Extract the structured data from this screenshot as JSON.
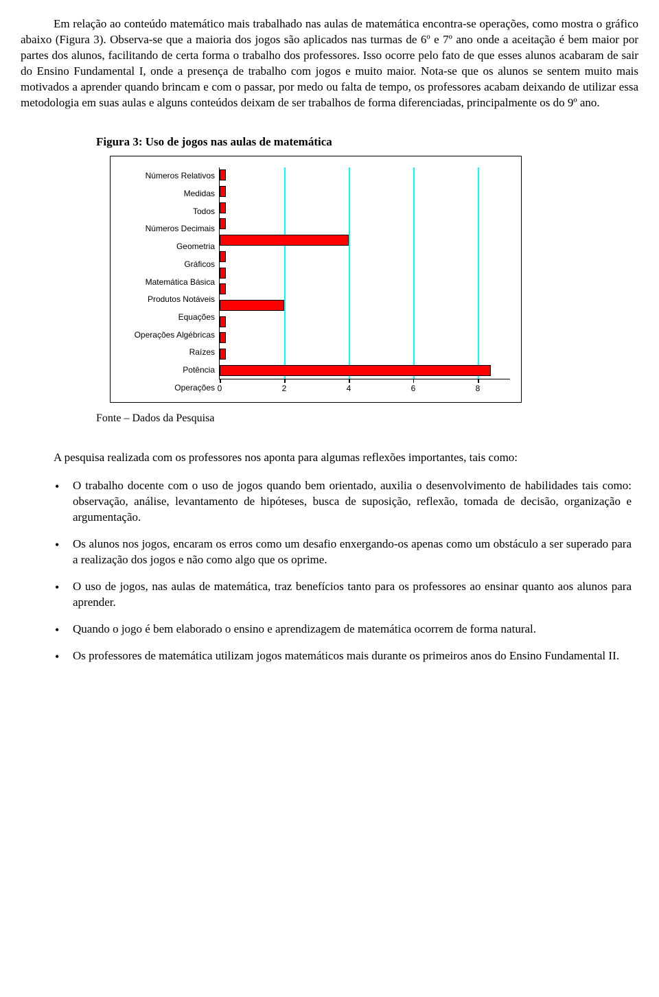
{
  "paragraph1": "Em relação ao conteúdo matemático mais trabalhado nas aulas de matemática encontra-se operações, como mostra o gráfico abaixo (Figura 3). Observa-se que a maioria dos jogos são aplicados nas turmas de 6º e 7º ano onde a aceitação é bem maior por partes dos alunos, facilitando de certa forma o trabalho dos professores. Isso ocorre pelo fato de que esses alunos acabaram de sair do Ensino Fundamental I, onde a presença de trabalho com jogos e muito maior. Nota-se que os alunos se sentem muito mais motivados a aprender quando brincam e com o passar, por medo ou falta de tempo, os professores acabam deixando de utilizar essa metodologia em suas aulas e alguns conteúdos deixam de ser trabalhos de forma diferenciadas, principalmente os do 9º ano.",
  "figure_caption": "Figura 3: Uso de jogos nas aulas de matemática",
  "chart": {
    "type": "bar-horizontal",
    "bar_color": "#ff0000",
    "bar_border": "#000000",
    "grid_color": "#00ffff",
    "axis_color": "#000000",
    "background": "#ffffff",
    "label_font": "Arial",
    "label_fontsize": 12,
    "x_max": 9,
    "x_ticks": [
      0,
      2,
      4,
      6,
      8
    ],
    "categories": [
      {
        "label": "Números Relativos",
        "value": 0.2
      },
      {
        "label": "Medidas",
        "value": 0.2
      },
      {
        "label": "Todos",
        "value": 0.2
      },
      {
        "label": "Números Decimais",
        "value": 0.2
      },
      {
        "label": "Geometria",
        "value": 4.0
      },
      {
        "label": "Gráficos",
        "value": 0.2
      },
      {
        "label": "Matemática Básica",
        "value": 0.2
      },
      {
        "label": "Produtos Notáveis",
        "value": 0.2
      },
      {
        "label": "Equações",
        "value": 2.0
      },
      {
        "label": "Operações Algébricas",
        "value": 0.2
      },
      {
        "label": "Raízes",
        "value": 0.2
      },
      {
        "label": "Potência",
        "value": 0.2
      },
      {
        "label": "Operações",
        "value": 8.4
      }
    ]
  },
  "fonte": "Fonte – Dados da Pesquisa",
  "paragraph2": "A pesquisa realizada com os professores nos aponta para algumas reflexões importantes, tais como:",
  "bullets": [
    "O trabalho docente com o uso de jogos quando bem orientado, auxilia o desenvolvimento de habilidades tais como: observação, análise, levantamento de hipóteses, busca de suposição, reflexão, tomada de decisão, organização e argumentação.",
    "Os alunos nos jogos, encaram os erros como um desafio enxergando-os apenas como um obstáculo a ser superado para a realização dos jogos e não como algo que os oprime.",
    "O uso de jogos, nas aulas de matemática, traz benefícios tanto para os professores ao ensinar quanto aos alunos para aprender.",
    "Quando o jogo é bem elaborado o ensino e aprendizagem de matemática ocorrem de forma natural.",
    "Os professores de matemática utilizam jogos matemáticos mais durante os primeiros anos do Ensino Fundamental II."
  ]
}
